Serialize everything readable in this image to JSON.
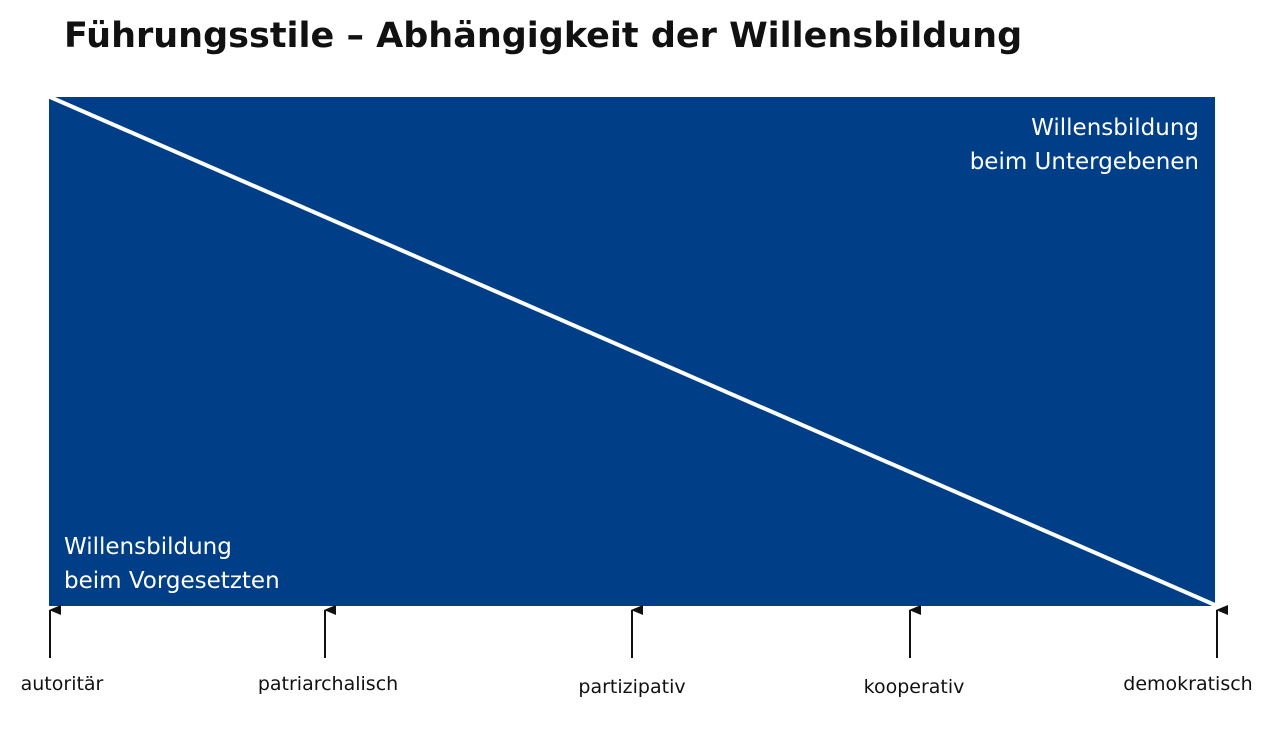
{
  "title": "Führungsstile – Abhängigkeit der Willensbildung",
  "colors": {
    "area": "#003f87",
    "divider": "#ffffff",
    "area_text": "#ffffff",
    "text": "#111111"
  },
  "areas": {
    "top_right": {
      "line1": "Willensbildung",
      "line2": "beim Untergebenen"
    },
    "bottom_left": {
      "line1": "Willensbildung",
      "line2": "beim Vorgesetzten"
    }
  },
  "scale": {
    "styles": [
      {
        "label": "autoritär"
      },
      {
        "label": "patriarchalisch"
      },
      {
        "label": "partizipativ"
      },
      {
        "label": "kooperativ"
      },
      {
        "label": "demokratisch"
      }
    ]
  }
}
